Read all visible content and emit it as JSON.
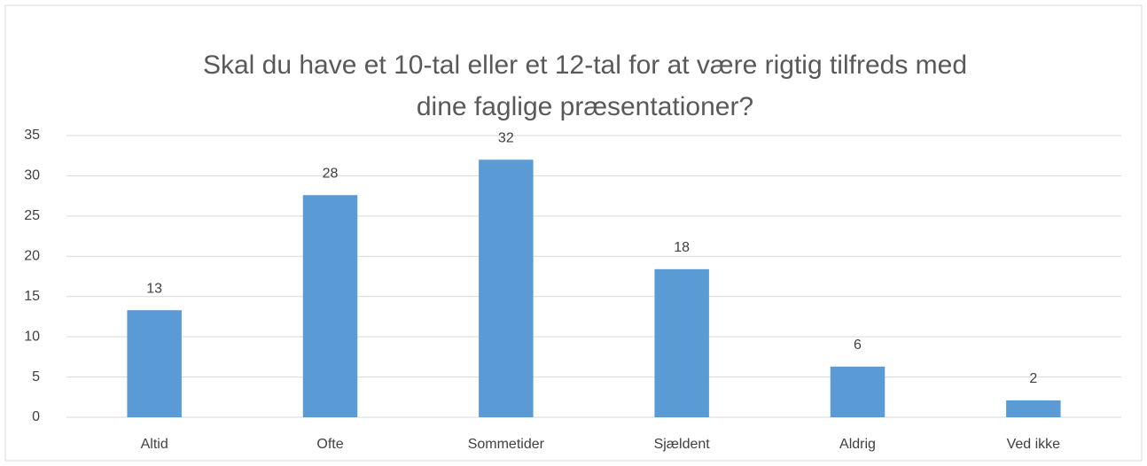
{
  "chart_data": {
    "type": "bar",
    "title": [
      "Skal du have et 10-tal eller et 12-tal for at være rigtig tilfreds med",
      "dine faglige præsentationer?"
    ],
    "categories": [
      "Altid",
      "Ofte",
      "Sommetider",
      "Sjældent",
      "Aldrig",
      "Ved ikke"
    ],
    "values": [
      13.3,
      27.6,
      32.0,
      18.4,
      6.3,
      2.1
    ],
    "value_labels": [
      "13",
      "28",
      "32",
      "18",
      "6",
      "2"
    ],
    "color": "#5b9bd5",
    "ylim": [
      0,
      35
    ],
    "yticks": [
      0,
      5,
      10,
      15,
      20,
      25,
      30,
      35
    ],
    "grid": true
  }
}
